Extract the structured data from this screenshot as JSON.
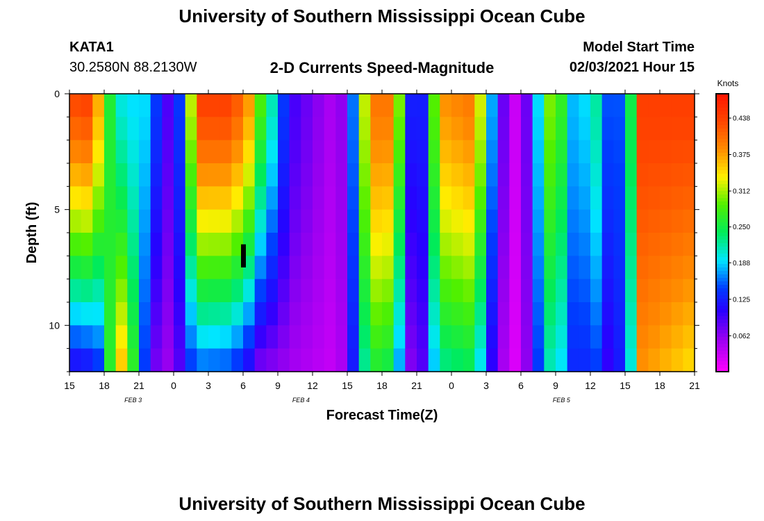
{
  "page": {
    "title_top": "University of Southern Mississippi Ocean Cube",
    "title_bottom": "University of Southern Mississippi Ocean Cube",
    "station_id": "KATA1",
    "station_coords": "30.2580N 88.2130W",
    "model_start_label": "Model Start Time",
    "model_start_value": "02/03/2021 Hour 15"
  },
  "colors": {
    "background": "#ffffff",
    "marker": "#000000"
  },
  "chart_data": {
    "type": "heatmap",
    "title": "2-D Currents Speed-Magnitude",
    "xlabel": "Forecast Time(Z)",
    "ylabel": "Depth (ft)",
    "x_start_hour": 15,
    "x_end_hour": 69,
    "x_ticks": [
      "15",
      "18",
      "21",
      "0",
      "3",
      "6",
      "9",
      "12",
      "15",
      "18",
      "21",
      "0",
      "3",
      "6",
      "9",
      "12",
      "15",
      "18",
      "21"
    ],
    "date_labels": [
      {
        "hour": 20.5,
        "text": "FEB 3"
      },
      {
        "hour": 35,
        "text": "FEB 4"
      },
      {
        "hour": 57.5,
        "text": "FEB 5"
      }
    ],
    "y_ticks": [
      0,
      5,
      10
    ],
    "depth_range": [
      0,
      12
    ],
    "colorbar": {
      "unit": "Knots",
      "vmin": 0.0,
      "vmax": 0.48,
      "ticks": [
        "0.438",
        "0.375",
        "0.312",
        "0.250",
        "0.188",
        "0.125",
        "0.062"
      ]
    },
    "depth_levels_ft": [
      0.5,
      1.5,
      2.5,
      3.5,
      4.5,
      5.5,
      6.5,
      7.5,
      8.5,
      9.5,
      10.5,
      11.5
    ],
    "speed_profile_knots": [
      {
        "hour": 15.0,
        "surface": 0.43,
        "bottom": 0.1
      },
      {
        "hour": 17.0,
        "surface": 0.44,
        "bottom": 0.11
      },
      {
        "hour": 18.0,
        "surface": 0.3,
        "bottom": 0.15
      },
      {
        "hour": 19.0,
        "surface": 0.22,
        "bottom": 0.38
      },
      {
        "hour": 20.0,
        "surface": 0.18,
        "bottom": 0.34
      },
      {
        "hour": 21.0,
        "surface": 0.2,
        "bottom": 0.2
      },
      {
        "hour": 22.0,
        "surface": 0.18,
        "bottom": 0.08
      },
      {
        "hour": 23.0,
        "surface": 0.1,
        "bottom": 0.06
      },
      {
        "hour": 24.0,
        "surface": 0.08,
        "bottom": 0.05
      },
      {
        "hour": 25.0,
        "surface": 0.2,
        "bottom": 0.12
      },
      {
        "hour": 26.0,
        "surface": 0.44,
        "bottom": 0.15
      },
      {
        "hour": 29.0,
        "surface": 0.44,
        "bottom": 0.14
      },
      {
        "hour": 30.5,
        "surface": 0.38,
        "bottom": 0.1
      },
      {
        "hour": 31.0,
        "surface": 0.32,
        "bottom": 0.07
      },
      {
        "hour": 32.0,
        "surface": 0.25,
        "bottom": 0.06
      },
      {
        "hour": 33.0,
        "surface": 0.18,
        "bottom": 0.06
      },
      {
        "hour": 34.0,
        "surface": 0.1,
        "bottom": 0.05
      },
      {
        "hour": 36.0,
        "surface": 0.07,
        "bottom": 0.04
      },
      {
        "hour": 38.0,
        "surface": 0.04,
        "bottom": 0.03
      },
      {
        "hour": 39.0,
        "surface": 0.08,
        "bottom": 0.06
      },
      {
        "hour": 40.0,
        "surface": 0.24,
        "bottom": 0.18
      },
      {
        "hour": 41.0,
        "surface": 0.4,
        "bottom": 0.26
      },
      {
        "hour": 43.0,
        "surface": 0.4,
        "bottom": 0.24
      },
      {
        "hour": 44.0,
        "surface": 0.2,
        "bottom": 0.1
      },
      {
        "hour": 45.0,
        "surface": 0.05,
        "bottom": 0.03
      },
      {
        "hour": 46.0,
        "surface": 0.2,
        "bottom": 0.14
      },
      {
        "hour": 47.0,
        "surface": 0.38,
        "bottom": 0.22
      },
      {
        "hour": 50.0,
        "surface": 0.4,
        "bottom": 0.24
      },
      {
        "hour": 51.0,
        "surface": 0.25,
        "bottom": 0.14
      },
      {
        "hour": 52.0,
        "surface": 0.1,
        "bottom": 0.06
      },
      {
        "hour": 53.5,
        "surface": 0.03,
        "bottom": 0.02
      },
      {
        "hour": 55.0,
        "surface": 0.1,
        "bottom": 0.08
      },
      {
        "hour": 56.0,
        "surface": 0.28,
        "bottom": 0.2
      },
      {
        "hour": 57.0,
        "surface": 0.32,
        "bottom": 0.22
      },
      {
        "hour": 58.0,
        "surface": 0.22,
        "bottom": 0.16
      },
      {
        "hour": 59.0,
        "surface": 0.14,
        "bottom": 0.1
      },
      {
        "hour": 60.0,
        "surface": 0.24,
        "bottom": 0.16
      },
      {
        "hour": 61.0,
        "surface": 0.2,
        "bottom": 0.12
      },
      {
        "hour": 62.0,
        "surface": 0.1,
        "bottom": 0.08
      },
      {
        "hour": 63.5,
        "surface": 0.25,
        "bottom": 0.2
      },
      {
        "hour": 64.5,
        "surface": 0.44,
        "bottom": 0.38
      },
      {
        "hour": 69.0,
        "surface": 0.44,
        "bottom": 0.34
      }
    ],
    "marker": {
      "hour": 30,
      "depth_top": 6.5,
      "depth_bottom": 7.5
    }
  }
}
